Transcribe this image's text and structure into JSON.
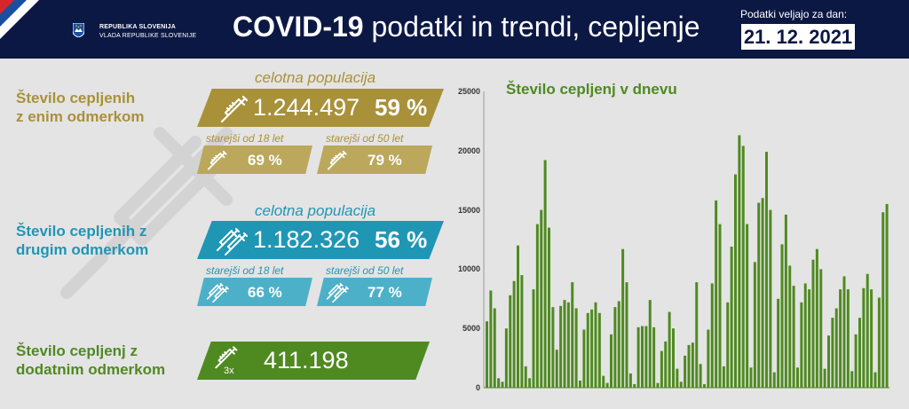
{
  "header": {
    "gov_line1": "REPUBLIKA SLOVENIJA",
    "gov_line2": "VLADA REPUBLIKE SLOVENIJE",
    "title_bold": "COVID-19",
    "title_rest": "podatki in trendi, cepljenje",
    "valid_label": "Podatki veljajo za dan:",
    "date": "21. 12. 2021"
  },
  "colors": {
    "navy": "#0c1844",
    "gold": "#a9913a",
    "blue": "#2096b5",
    "green": "#4f8a21"
  },
  "first_dose": {
    "label_line1": "Število cepljenih",
    "label_line2": "z enim odmerkom",
    "caption": "celotna populacija",
    "total": "1.244.497",
    "total_pct": "59 %",
    "over18_label": "starejši od 18 let",
    "over18_pct": "69 %",
    "over50_label": "starejši od 50 let",
    "over50_pct": "79 %"
  },
  "second_dose": {
    "label_line1": "Število cepljenih z",
    "label_line2": "drugim odmerkom",
    "caption": "celotna populacija",
    "total": "1.182.326",
    "total_pct": "56 %",
    "over18_label": "starejši od 18 let",
    "over18_pct": "66 %",
    "over50_label": "starejši od 50 let",
    "over50_pct": "77 %"
  },
  "booster": {
    "label_line1": "Število cepljenj z",
    "label_line2": "dodatnim odmerkom",
    "icon_text": "3x",
    "total": "411.198"
  },
  "chart_data": {
    "type": "bar",
    "title": "Število cepljenj v dnevu",
    "ylim": [
      0,
      25000
    ],
    "yticks": [
      "25000",
      "20000",
      "15000",
      "10000",
      "5000",
      "0"
    ],
    "values": [
      5600,
      8200,
      6700,
      800,
      500,
      5000,
      7800,
      9000,
      12000,
      9500,
      1800,
      800,
      8300,
      13800,
      15000,
      19200,
      13500,
      6800,
      3200,
      6900,
      7400,
      7200,
      8900,
      6700,
      600,
      4900,
      6300,
      6600,
      7200,
      6300,
      1000,
      400,
      4500,
      6800,
      7300,
      11700,
      8900,
      1200,
      300,
      5100,
      5200,
      5200,
      7400,
      5100,
      400,
      3100,
      3900,
      6400,
      5000,
      1600,
      500,
      2700,
      3600,
      3800,
      8900,
      2000,
      300,
      4900,
      8800,
      15800,
      13800,
      1800,
      7200,
      11900,
      18000,
      21300,
      20400,
      13800,
      1700,
      10600,
      15600,
      16000,
      19900,
      15000,
      1300,
      7500,
      12100,
      14600,
      10300,
      8600,
      1700,
      7200,
      8800,
      8300,
      10800,
      11700,
      10000,
      1600,
      4400,
      5900,
      6700,
      8300,
      9400,
      8300,
      1400,
      4500,
      5900,
      8400,
      9600,
      8300,
      1300,
      7600,
      14800,
      15500
    ]
  }
}
